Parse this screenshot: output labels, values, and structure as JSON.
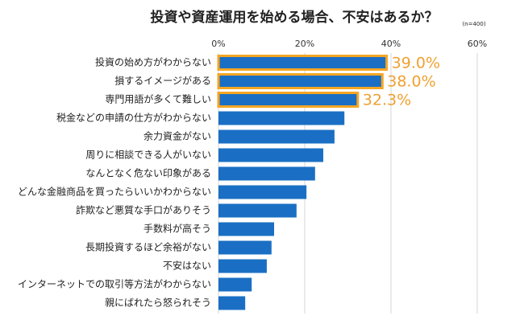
{
  "chart_data": {
    "type": "bar",
    "orientation": "horizontal",
    "title": "投資や資産運用を始める場合、不安はあるか？",
    "subtitle": "(n=400)",
    "categories": [
      "投資の始め方がわからない",
      "損するイメージがある",
      "専門用語が多くて難しい",
      "税金などの申請の仕方がわからない",
      "余力資金がない",
      "周りに相談できる人がいない",
      "なんとなく危ない印象がある",
      "どんな金融商品を買ったらいいかわからない",
      "詐欺など悪質な手口がありそう",
      "手数料が高そう",
      "長期投資するほど余裕がない",
      "不安はない",
      "インターネットでの取引等方法がわからない",
      "親にばれたら怒られそう"
    ],
    "values": [
      39.0,
      38.0,
      32.3,
      29.2,
      26.9,
      24.3,
      22.4,
      20.4,
      18.1,
      12.9,
      12.3,
      11.2,
      7.7,
      6.2
    ],
    "value_labels": [
      "39.0%",
      "38.0%",
      "32.3%",
      null,
      null,
      null,
      null,
      null,
      null,
      null,
      null,
      null,
      null,
      null
    ],
    "color": "#1a6fc4",
    "highlight_color": "#f5a623",
    "xlim": [
      0,
      60
    ],
    "xticks": [
      {
        "value": 0,
        "label": "0%"
      },
      {
        "value": 20,
        "label": "20%"
      },
      {
        "value": 40,
        "label": "40%"
      },
      {
        "value": 60,
        "label": "60%"
      }
    ],
    "grid": true
  }
}
